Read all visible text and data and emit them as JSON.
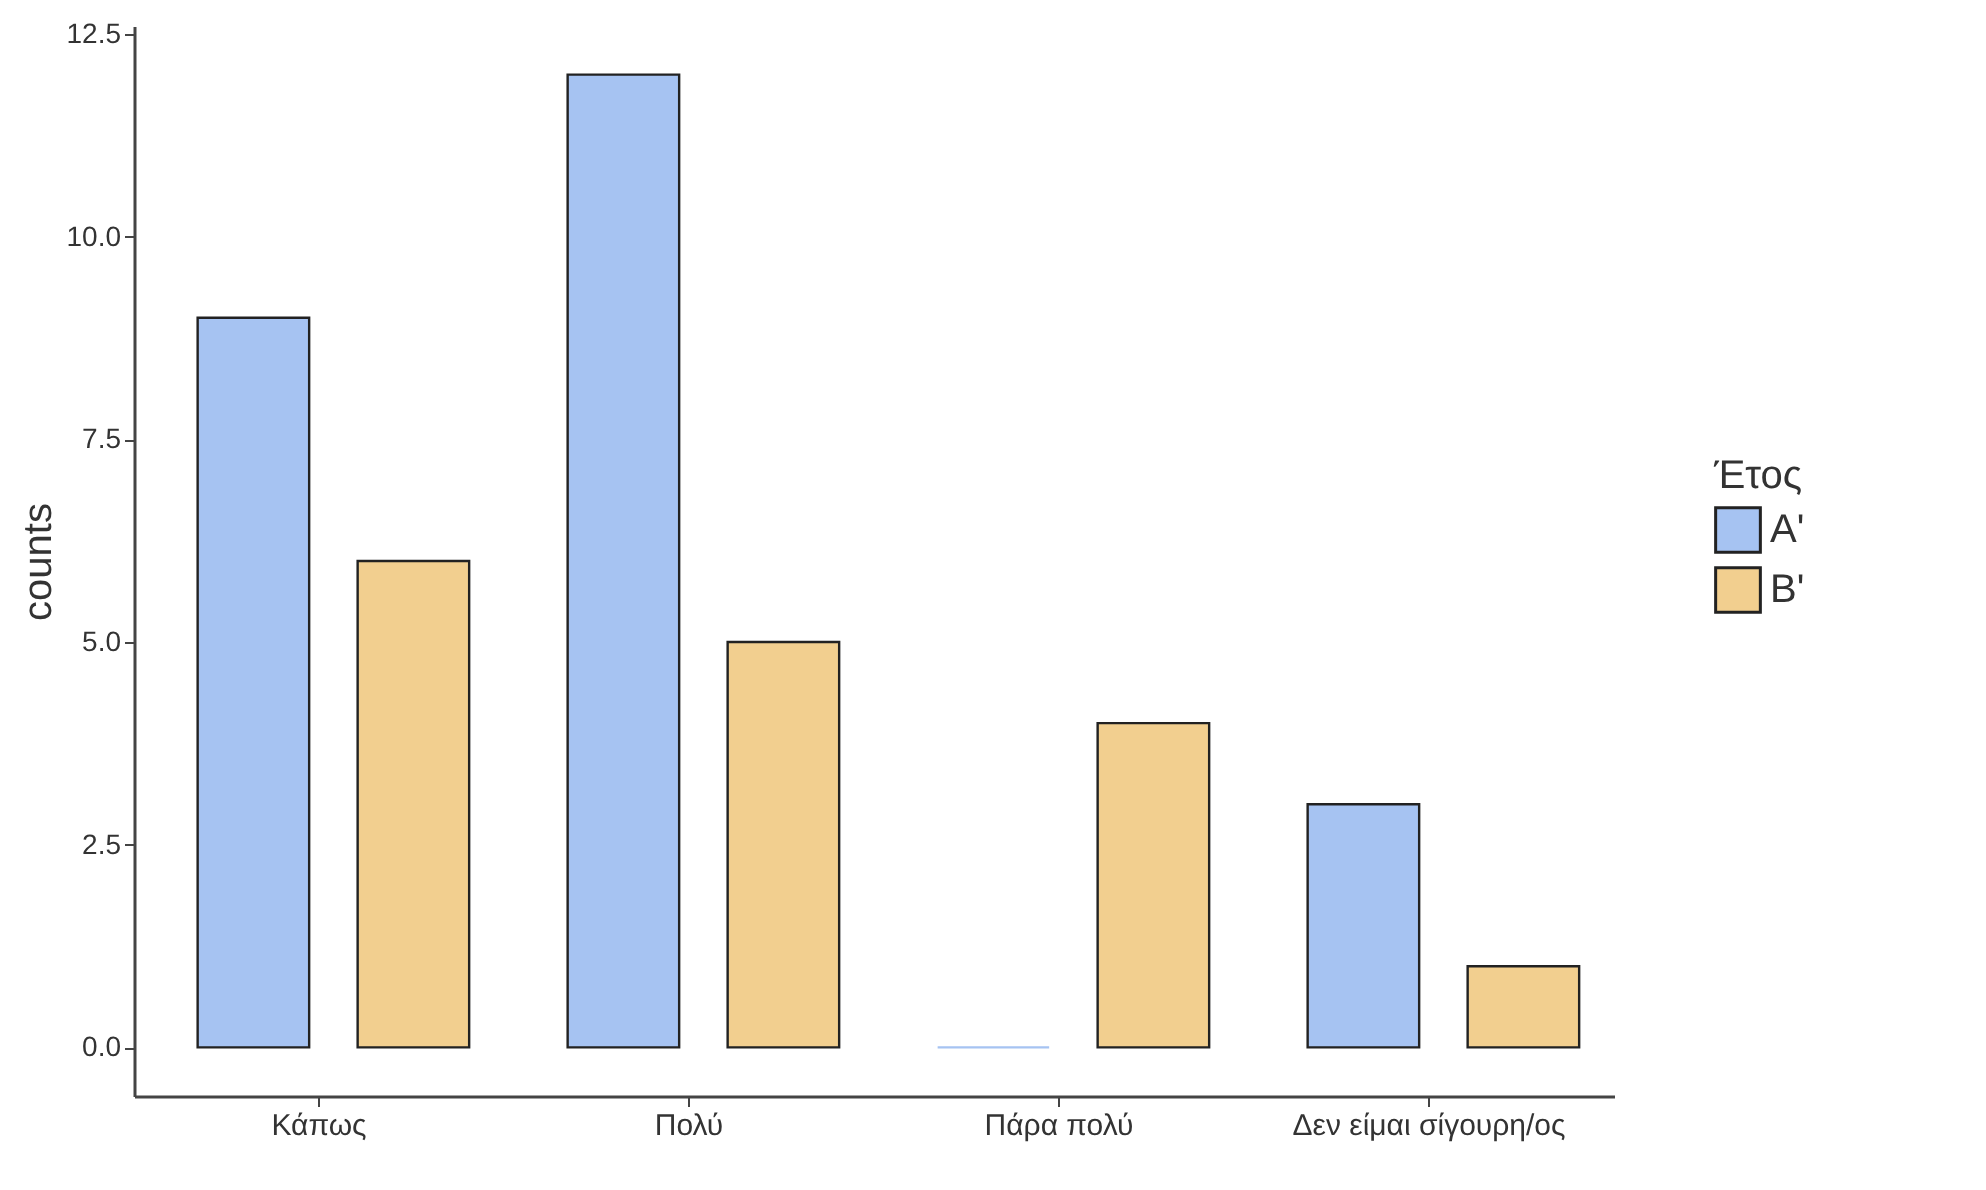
{
  "chart_data": {
    "type": "bar",
    "ylabel": "counts",
    "legend_title": "Έτος",
    "categories": [
      "Κάπως",
      "Πολύ",
      "Πάρα πολύ",
      "Δεν είμαι σίγουρη/ος"
    ],
    "series": [
      {
        "name": "A'",
        "color": "#a6c3f2",
        "values": [
          9,
          12,
          0,
          3
        ]
      },
      {
        "name": "B'",
        "color": "#f2cf8f",
        "values": [
          6,
          5,
          4,
          1
        ]
      }
    ],
    "ylim": [
      -0.6,
      12.6
    ],
    "yticks": [
      {
        "value": 0,
        "label": "0.0"
      },
      {
        "value": 2.5,
        "label": "2.5"
      },
      {
        "value": 5,
        "label": "5.0"
      },
      {
        "value": 7.5,
        "label": "7.5"
      },
      {
        "value": 10,
        "label": "10.0"
      },
      {
        "value": 12.5,
        "label": "12.5"
      }
    ],
    "grid": false,
    "legend": "right"
  }
}
